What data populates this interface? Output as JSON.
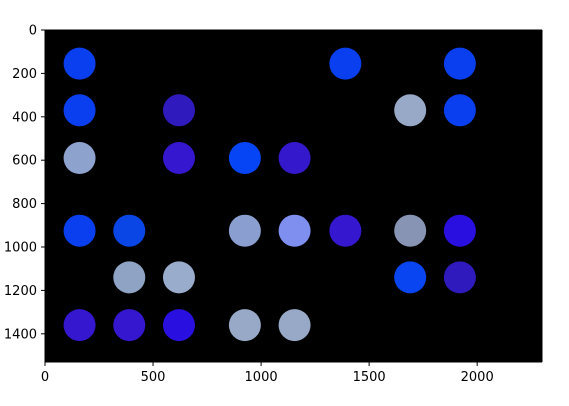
{
  "chart_data": {
    "type": "image",
    "title": "",
    "xlabel": "",
    "ylabel": "",
    "xlim": [
      0,
      2300
    ],
    "ylim": [
      1530,
      0
    ],
    "xticks": [
      0,
      500,
      1000,
      1500,
      2000
    ],
    "yticks": [
      0,
      200,
      400,
      600,
      800,
      1000,
      1200,
      1400
    ],
    "background_color": "#000000",
    "grid": false,
    "circles": [
      {
        "x": 160,
        "y": 155,
        "color": "#0a3ff0"
      },
      {
        "x": 1390,
        "y": 155,
        "color": "#0a3ff0"
      },
      {
        "x": 1920,
        "y": 155,
        "color": "#0a3ff0"
      },
      {
        "x": 160,
        "y": 370,
        "color": "#0a3ff0"
      },
      {
        "x": 620,
        "y": 370,
        "color": "#2f1bbd"
      },
      {
        "x": 1690,
        "y": 370,
        "color": "#98a9c8"
      },
      {
        "x": 1920,
        "y": 370,
        "color": "#0a3ff0"
      },
      {
        "x": 160,
        "y": 590,
        "color": "#8ea2ce"
      },
      {
        "x": 620,
        "y": 590,
        "color": "#3417cf"
      },
      {
        "x": 925,
        "y": 590,
        "color": "#0645f5"
      },
      {
        "x": 1155,
        "y": 590,
        "color": "#3418cc"
      },
      {
        "x": 160,
        "y": 925,
        "color": "#0a3ff0"
      },
      {
        "x": 390,
        "y": 925,
        "color": "#0a45e6"
      },
      {
        "x": 925,
        "y": 925,
        "color": "#8a9fd0"
      },
      {
        "x": 1155,
        "y": 925,
        "color": "#7f8ff0"
      },
      {
        "x": 1390,
        "y": 925,
        "color": "#3417cf"
      },
      {
        "x": 1690,
        "y": 925,
        "color": "#8894b3"
      },
      {
        "x": 1920,
        "y": 925,
        "color": "#2a10e0"
      },
      {
        "x": 390,
        "y": 1140,
        "color": "#8fa3c4"
      },
      {
        "x": 620,
        "y": 1140,
        "color": "#9aaccc"
      },
      {
        "x": 1690,
        "y": 1140,
        "color": "#0a45f2"
      },
      {
        "x": 1920,
        "y": 1140,
        "color": "#2f1bbd"
      },
      {
        "x": 160,
        "y": 1360,
        "color": "#3417cf"
      },
      {
        "x": 390,
        "y": 1360,
        "color": "#3417cf"
      },
      {
        "x": 620,
        "y": 1360,
        "color": "#2a10e0"
      },
      {
        "x": 925,
        "y": 1360,
        "color": "#98a9c8"
      },
      {
        "x": 1155,
        "y": 1360,
        "color": "#98a9c8"
      }
    ]
  }
}
